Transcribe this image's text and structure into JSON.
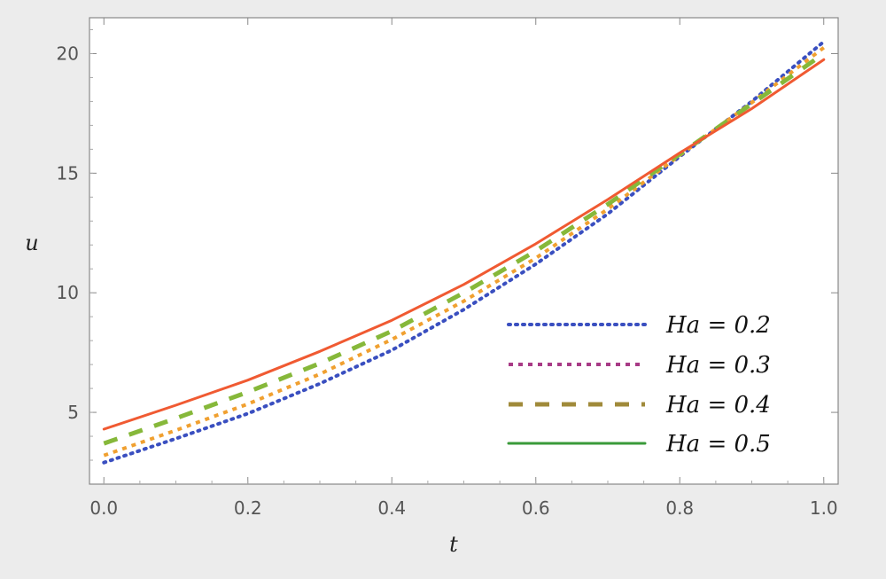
{
  "chart_data": {
    "type": "line",
    "title": "",
    "xlabel": "t",
    "ylabel": "u",
    "xlim": [
      -0.02,
      1.02
    ],
    "ylim": [
      2.0,
      21.5
    ],
    "xticks": [
      0.0,
      0.2,
      0.4,
      0.6,
      0.8,
      1.0
    ],
    "xtick_labels": [
      "0.0",
      "0.2",
      "0.4",
      "0.6",
      "0.8",
      "1.0"
    ],
    "yticks": [
      5,
      10,
      15,
      20
    ],
    "ytick_labels": [
      "5",
      "10",
      "15",
      "20"
    ],
    "grid": false,
    "legend_position": "bottom-right",
    "x": [
      0.0,
      0.1,
      0.2,
      0.3,
      0.4,
      0.5,
      0.6,
      0.7,
      0.8,
      0.9,
      1.0
    ],
    "series": [
      {
        "name": "Ha = 0.2",
        "line_style": "dotted",
        "color": "#3a4fc0",
        "legend_color": "#3a4fc0",
        "values": [
          2.9,
          3.9,
          4.95,
          6.2,
          7.6,
          9.3,
          11.2,
          13.3,
          15.7,
          18.0,
          20.5
        ]
      },
      {
        "name": "Ha = 0.3",
        "line_style": "short-dashed",
        "color": "#f0a030",
        "legend_color": "#a83a86",
        "values": [
          3.2,
          4.25,
          5.35,
          6.6,
          8.05,
          9.65,
          11.45,
          13.5,
          15.75,
          17.95,
          20.25
        ]
      },
      {
        "name": "Ha = 0.4",
        "line_style": "long-dashed",
        "color": "#86b83a",
        "legend_color": "#a08a3a",
        "values": [
          3.7,
          4.75,
          5.85,
          7.05,
          8.4,
          10.0,
          11.75,
          13.7,
          15.8,
          17.9,
          20.0
        ]
      },
      {
        "name": "Ha = 0.5",
        "line_style": "solid",
        "color": "#f05a32",
        "legend_color": "#3a9a3a",
        "values": [
          4.3,
          5.3,
          6.35,
          7.55,
          8.85,
          10.35,
          12.05,
          13.9,
          15.85,
          17.7,
          19.75
        ]
      }
    ]
  }
}
